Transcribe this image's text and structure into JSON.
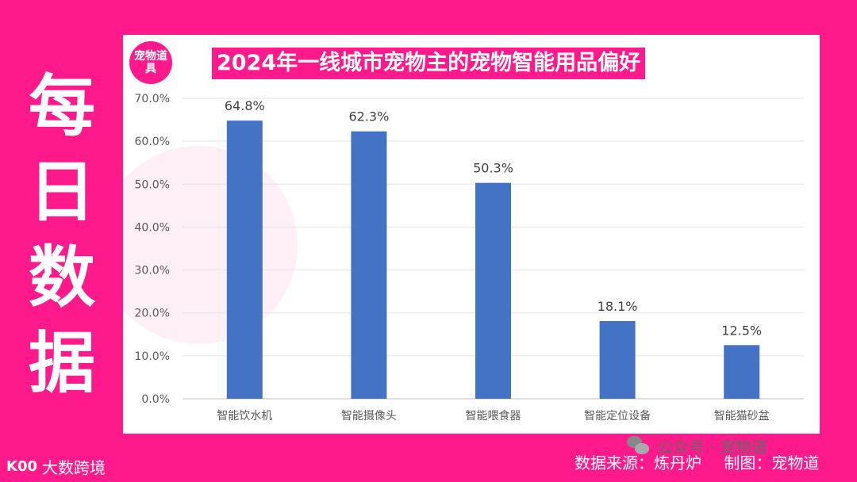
{
  "side_title": [
    "每",
    "日",
    "数",
    "据"
  ],
  "seal": {
    "text": "宠物道具"
  },
  "wechat": {
    "label": "公众号 · 宠物道"
  },
  "footer": {
    "logo_text": "大数跨境",
    "logo_mark": "K00",
    "source": "数据来源：炼丹炉",
    "maker": "制图：宠物道"
  },
  "colors": {
    "background": "#ff1a8c",
    "bar": "#4472c4",
    "panel": "#ffffff"
  },
  "chart_data": {
    "type": "bar",
    "title": "2024年一线城市宠物主的宠物智能用品偏好",
    "categories": [
      "智能饮水机",
      "智能摄像头",
      "智能喂食器",
      "智能定位设备",
      "智能猫砂盆"
    ],
    "values": [
      64.8,
      62.3,
      50.3,
      18.1,
      12.5
    ],
    "data_labels": [
      "64.8%",
      "62.3%",
      "50.3%",
      "18.1%",
      "12.5%"
    ],
    "y_ticks": [
      "0.0%",
      "10.0%",
      "20.0%",
      "30.0%",
      "40.0%",
      "50.0%",
      "60.0%",
      "70.0%"
    ],
    "ylim": [
      0,
      70
    ],
    "grid": true,
    "xlabel": "",
    "ylabel": ""
  }
}
